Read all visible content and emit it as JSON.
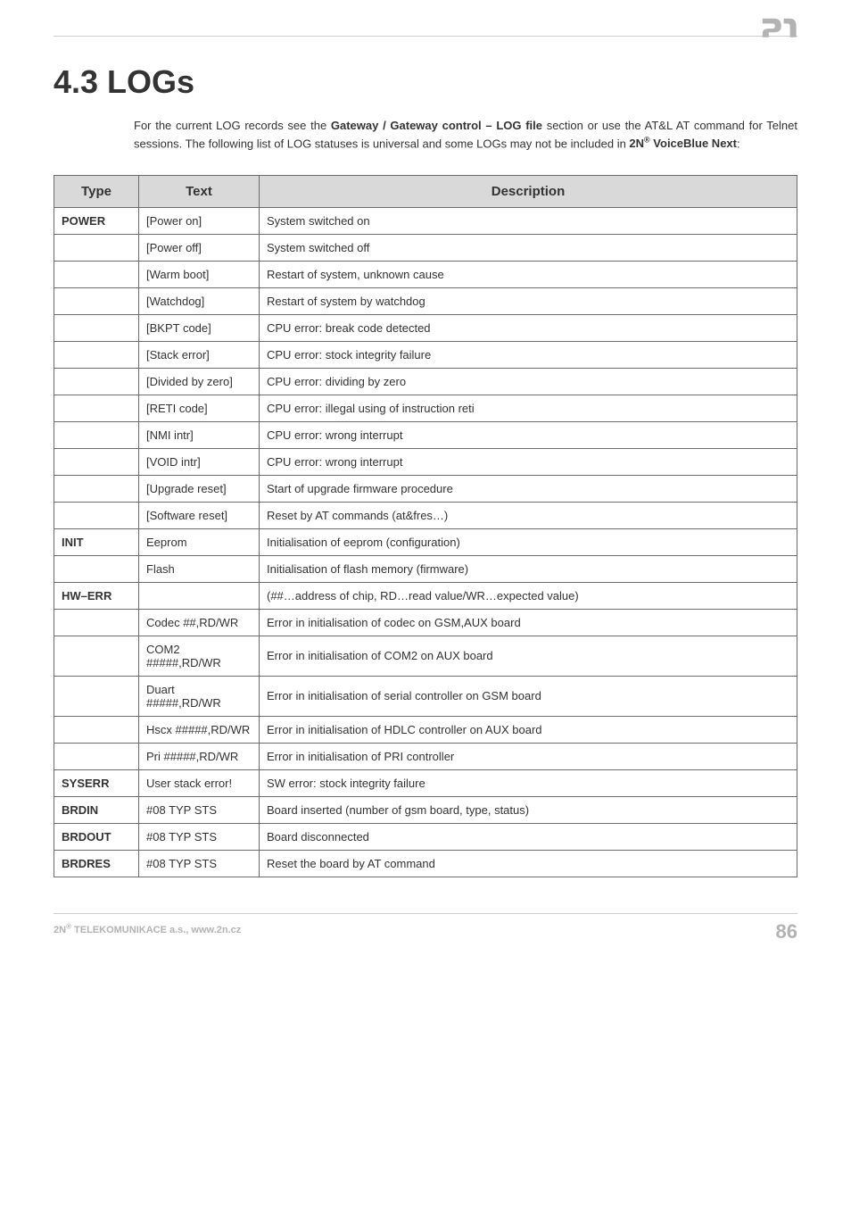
{
  "logo": {
    "fill_color": "#b3b3b3"
  },
  "title": "4.3 LOGs",
  "intro": {
    "part1": "For the current LOG records see the ",
    "bold1": "Gateway / Gateway control – LOG file",
    "part2": " section or use the AT&L AT command for Telnet sessions. The following list of LOG statuses is universal and some LOGs may not be included in ",
    "bold2_prefix": "2N",
    "bold2_sup": "®",
    "bold2_suffix": " VoiceBlue Next",
    "part3": ":"
  },
  "table": {
    "headers": [
      "Type",
      "Text",
      "Description"
    ],
    "rows": [
      {
        "type": "POWER",
        "text": "[Power on]",
        "desc": "System switched on"
      },
      {
        "type": "",
        "text": "[Power off]",
        "desc": "System switched off"
      },
      {
        "type": "",
        "text": "[Warm boot]",
        "desc": "Restart of system, unknown cause"
      },
      {
        "type": "",
        "text": "[Watchdog]",
        "desc": "Restart of system by watchdog"
      },
      {
        "type": "",
        "text": "[BKPT code]",
        "desc": "CPU error: break code detected"
      },
      {
        "type": "",
        "text": "[Stack error]",
        "desc": "CPU error: stock integrity failure"
      },
      {
        "type": "",
        "text": "[Divided by zero]",
        "desc": "CPU error: dividing by zero"
      },
      {
        "type": "",
        "text": "[RETI code]",
        "desc": "CPU error: illegal using of instruction reti"
      },
      {
        "type": "",
        "text": "[NMI intr]",
        "desc": "CPU error: wrong interrupt"
      },
      {
        "type": "",
        "text": "[VOID intr]",
        "desc": "CPU error: wrong interrupt"
      },
      {
        "type": "",
        "text": "[Upgrade reset]",
        "desc": "Start of upgrade firmware procedure"
      },
      {
        "type": "",
        "text": "[Software reset]",
        "desc": "Reset by AT commands (at&fres…)"
      },
      {
        "type": "INIT",
        "text": "Eeprom",
        "desc": "Initialisation of eeprom (configuration)"
      },
      {
        "type": "",
        "text": "Flash",
        "desc": "Initialisation of flash memory (firmware)"
      },
      {
        "type": "HW–ERR",
        "text": "",
        "desc": "(##…address of chip, RD…read value/WR…expected value)"
      },
      {
        "type": "",
        "text": "Codec ##,RD/WR",
        "desc": "Error in initialisation of codec on GSM,AUX board"
      },
      {
        "type": "",
        "text": "COM2 #####,RD/WR",
        "desc": "Error in initialisation of COM2 on AUX board"
      },
      {
        "type": "",
        "text": "Duart #####,RD/WR",
        "desc": "Error in initialisation of serial controller on GSM board"
      },
      {
        "type": "",
        "text": "Hscx #####,RD/WR",
        "desc": "Error in initialisation of HDLC controller on AUX board"
      },
      {
        "type": "",
        "text": "Pri #####,RD/WR",
        "desc": "Error in initialisation of PRI controller"
      },
      {
        "type": "SYSERR",
        "text": "User stack error!",
        "desc": "SW error: stock integrity failure"
      },
      {
        "type": "BRDIN",
        "text": "#08 TYP STS",
        "desc": "Board inserted (number of gsm board, type, status)"
      },
      {
        "type": "BRDOUT",
        "text": "#08 TYP STS",
        "desc": "Board disconnected"
      },
      {
        "type": "BRDRES",
        "text": "#08 TYP STS",
        "desc": "Reset the board by AT command"
      }
    ]
  },
  "footer": {
    "text_prefix": "2N",
    "text_sup": "®",
    "text_suffix": " TELEKOMUNIKACE a.s., www.2n.cz",
    "page_number": "86"
  }
}
